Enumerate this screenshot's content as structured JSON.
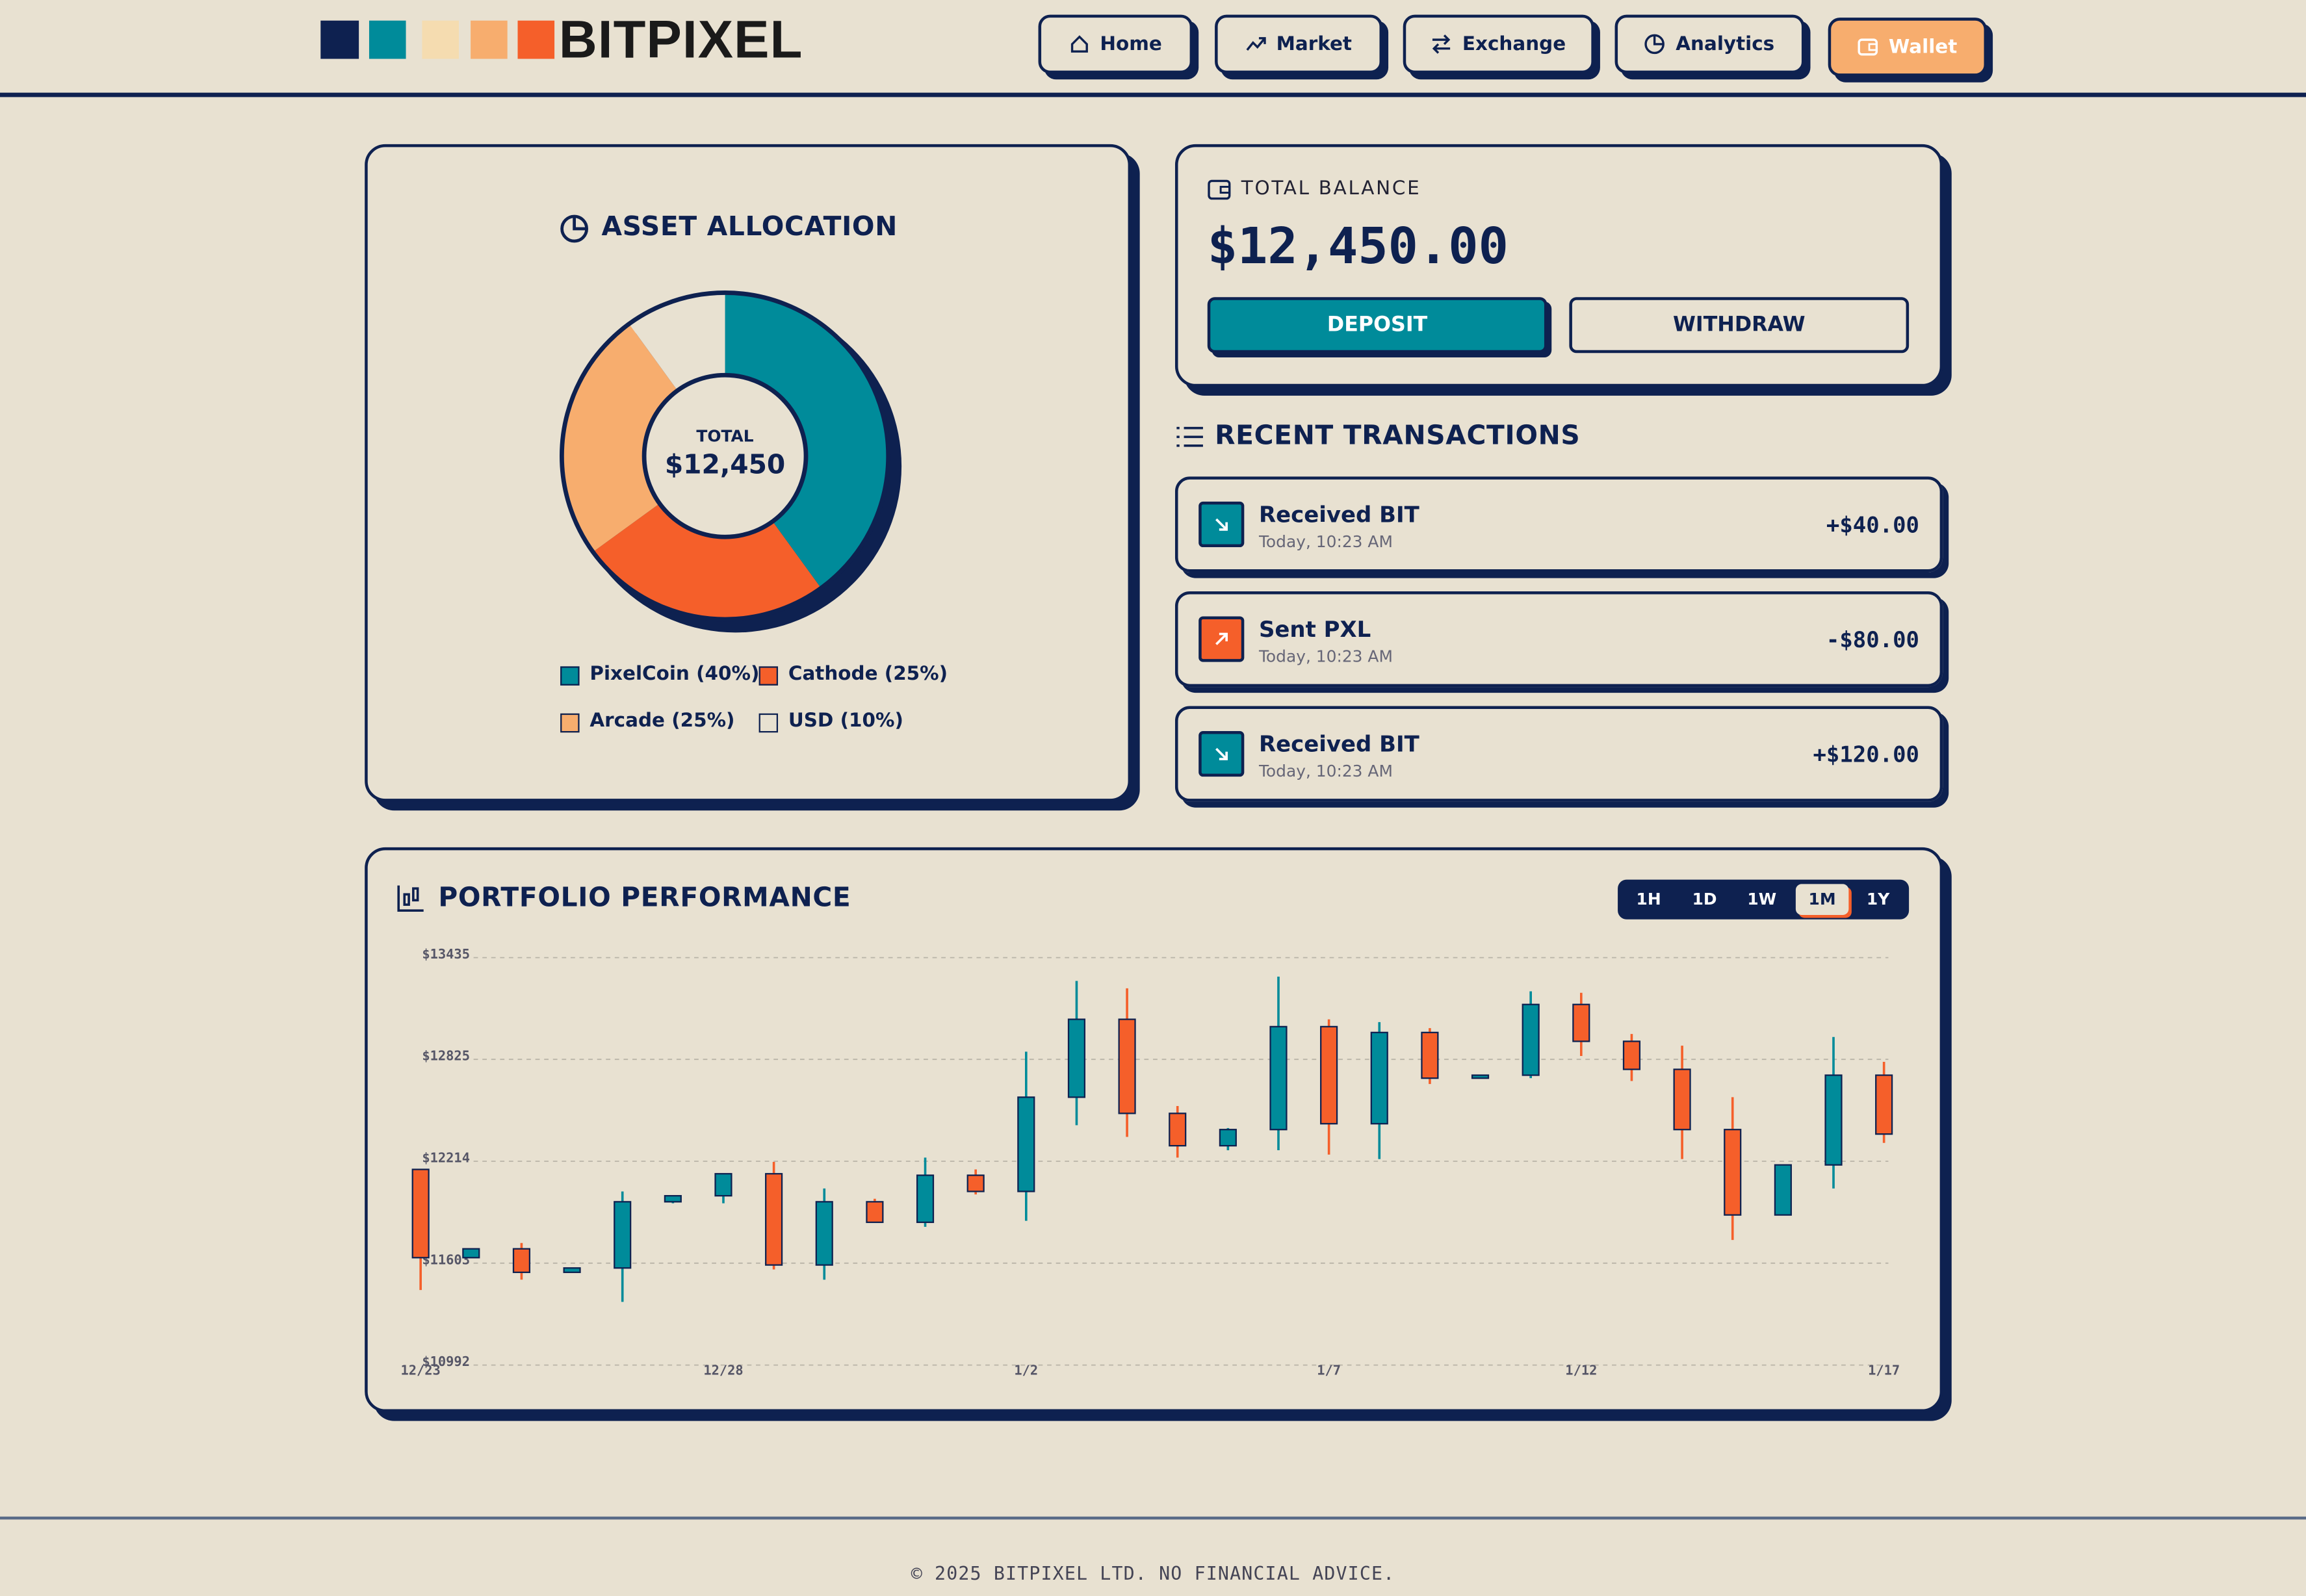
{
  "header": {
    "brand": "BITPIXEL",
    "nav": [
      "Home",
      "Market",
      "Exchange",
      "Analytics",
      "Wallet"
    ],
    "active_nav": 4
  },
  "allocation": {
    "type": "pie",
    "title": "ASSET ALLOCATION",
    "center_label": "TOTAL",
    "center_value": "$12,450",
    "series": [
      {
        "name": "PixelCoin",
        "label": "PixelCoin (40%)",
        "value": 40,
        "color": "#008b9a"
      },
      {
        "name": "Cathode",
        "label": "Cathode (25%)",
        "value": 25,
        "color": "#f55f2a"
      },
      {
        "name": "Arcade",
        "label": "Arcade (25%)",
        "value": 25,
        "color": "#f7ad6e"
      },
      {
        "name": "USD",
        "label": "USD (10%)",
        "value": 10,
        "color": "#e8e1d1"
      }
    ]
  },
  "balance": {
    "label": "TOTAL BALANCE",
    "amount": "$12,450.00",
    "buttons": [
      "DEPOSIT",
      "WITHDRAW"
    ]
  },
  "transactions": {
    "title": "RECENT TRANSACTIONS",
    "items": [
      {
        "title": "Received BIT",
        "time": "Today, 10:23 AM",
        "amount": "+$40.00",
        "direction": "in"
      },
      {
        "title": "Sent PXL",
        "time": "Today, 10:23 AM",
        "amount": "-$80.00",
        "direction": "out"
      },
      {
        "title": "Received BIT",
        "time": "Today, 10:23 AM",
        "amount": "+$120.00",
        "direction": "in"
      }
    ]
  },
  "performance": {
    "type": "candlestick",
    "title": "PORTFOLIO PERFORMANCE",
    "ranges": [
      "1H",
      "1D",
      "1W",
      "1M",
      "1Y"
    ],
    "active_range": 3,
    "categories": [
      "12/23",
      null,
      null,
      null,
      null,
      null,
      "12/28",
      null,
      null,
      null,
      null,
      null,
      "1/2",
      null,
      null,
      null,
      null,
      null,
      "1/7",
      null,
      null,
      null,
      null,
      "1/12",
      null,
      null,
      null,
      null,
      null,
      "1/17"
    ],
    "open": [
      12165,
      11636,
      11689,
      11548,
      11574,
      11971,
      12007,
      12139,
      11592,
      11971,
      11848,
      12130,
      12033,
      12598,
      13065,
      12501,
      12307,
      12404,
      13021,
      12439,
      12986,
      12712,
      12730,
      13154,
      12933,
      12765,
      12404,
      11892,
      12192,
      12730
    ],
    "high": [
      12165,
      11689,
      11724,
      11574,
      12033,
      12007,
      12139,
      12210,
      12051,
      11989,
      12236,
      12165,
      12871,
      13295,
      13251,
      12545,
      12413,
      13321,
      13065,
      13048,
      13012,
      12730,
      13233,
      13224,
      12977,
      12907,
      12598,
      12192,
      12959,
      12810
    ],
    "low": [
      11442,
      11636,
      11504,
      11548,
      11371,
      11962,
      11962,
      11565,
      11504,
      11848,
      11821,
      12015,
      11857,
      12430,
      12360,
      12236,
      12280,
      12280,
      12254,
      12227,
      12677,
      12712,
      12712,
      12845,
      12695,
      12227,
      11742,
      11892,
      12051,
      12324
    ],
    "close": [
      11636,
      11689,
      11548,
      11574,
      11971,
      12007,
      12139,
      11592,
      11971,
      11848,
      12130,
      12033,
      12598,
      13065,
      12501,
      12307,
      12404,
      13021,
      12439,
      12986,
      12712,
      12730,
      13154,
      12933,
      12765,
      12404,
      11892,
      12192,
      12730,
      12377
    ],
    "ylim": [
      10992,
      13435
    ],
    "yticks": [
      {
        "value": 10992,
        "label": "$10992"
      },
      {
        "value": 11603,
        "label": "$11603"
      },
      {
        "value": 12214,
        "label": "$12214"
      },
      {
        "value": 12825,
        "label": "$12825"
      },
      {
        "value": 13435,
        "label": "$13435"
      }
    ],
    "up_color": "#008b9a",
    "down_color": "#f55f2a",
    "grid": true
  },
  "footer": "© 2025 BITPIXEL LTD. NO FINANCIAL ADVICE."
}
